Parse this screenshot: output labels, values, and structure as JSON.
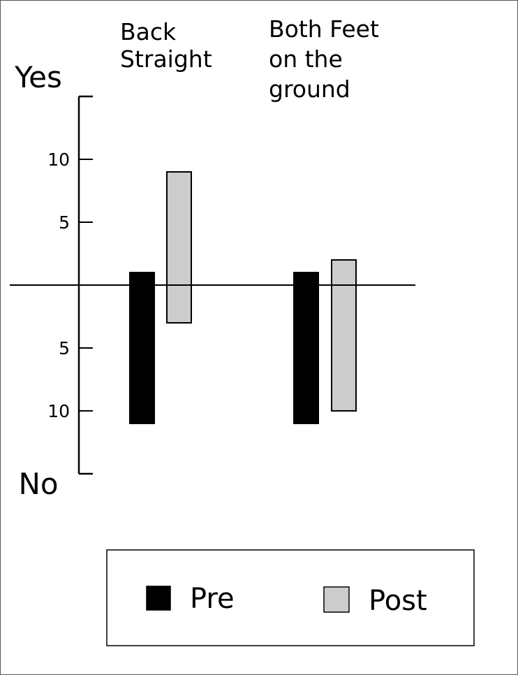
{
  "chart_data": {
    "type": "bar",
    "title": "",
    "categories": [
      [
        "Back",
        "Straight"
      ],
      [
        "Both Feet",
        "on the",
        "ground"
      ]
    ],
    "axis": {
      "top_label": "Yes",
      "bottom_label": "No",
      "ticks_up": [
        5,
        10
      ],
      "ticks_down": [
        5,
        10
      ],
      "range_up": 15,
      "range_down": 15,
      "grid": false
    },
    "series": [
      {
        "name": "Pre",
        "color": "#000000",
        "yes": [
          1,
          1
        ],
        "no": [
          11,
          11
        ]
      },
      {
        "name": "Post",
        "color": "#cccccc",
        "yes": [
          9,
          2
        ],
        "no": [
          3,
          10
        ]
      }
    ],
    "legend": {
      "placement": "bottom"
    }
  }
}
